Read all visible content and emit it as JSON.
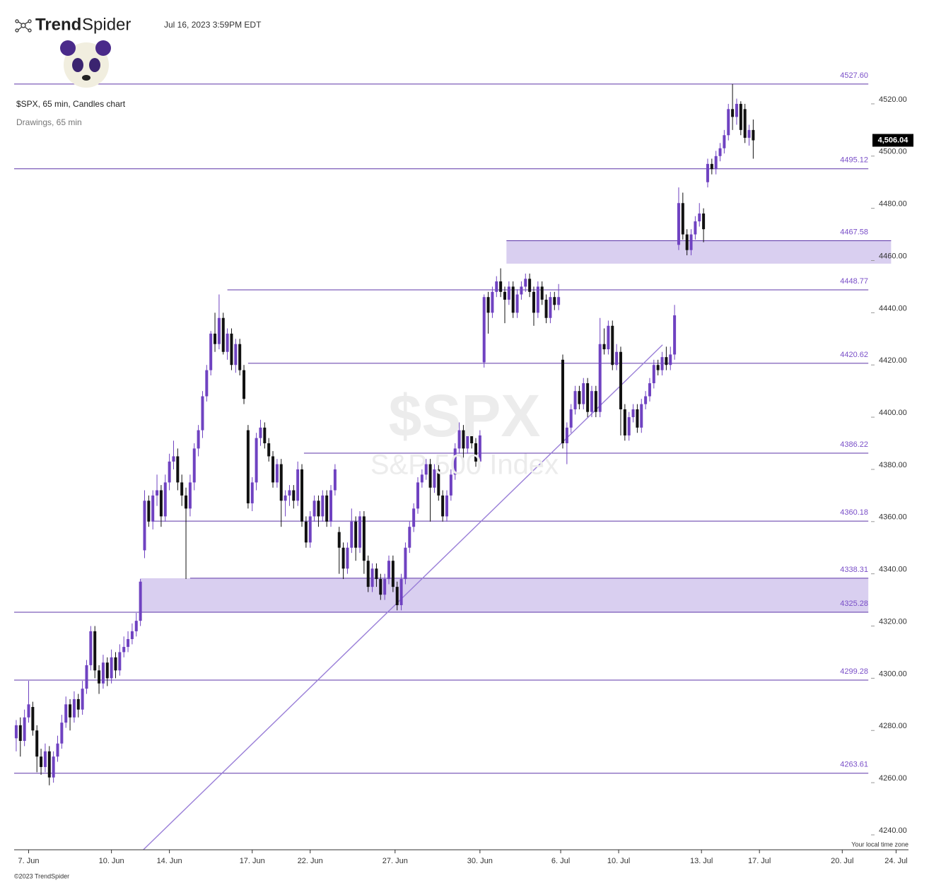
{
  "header": {
    "brand_bold": "Trend",
    "brand_light": "Spider",
    "timestamp": "Jul 16, 2023 3:59PM EDT",
    "symbol_line": "$SPX, 65 min, Candles chart",
    "drawings_line": "Drawings, 65 min",
    "timezone_note": "Your local time zone",
    "copyright": "©2023 TrendSpider"
  },
  "chart_data": {
    "type": "candlestick",
    "watermark": "$SPX",
    "watermark_subtitle": "S&P 500 Index",
    "up_color": "#6f42c1",
    "down_color": "#111111",
    "level_color": "#5d35a8",
    "zone_color": "#d9cff0",
    "xlim": [
      -0.5,
      215.5
    ],
    "ylim": [
      4234.3,
      4545
    ],
    "xticks": [
      {
        "value": 3,
        "label": "7. Jun"
      },
      {
        "value": 23,
        "label": "10. Jun"
      },
      {
        "value": 37,
        "label": "14. Jun"
      },
      {
        "value": 57,
        "label": "17. Jun"
      },
      {
        "value": 71,
        "label": "22. Jun"
      },
      {
        "value": 91.5,
        "label": "27. Jun"
      },
      {
        "value": 112,
        "label": "30. Jun"
      },
      {
        "value": 131.5,
        "label": "6. Jul"
      },
      {
        "value": 145.5,
        "label": "10. Jul"
      },
      {
        "value": 165.5,
        "label": "13. Jul"
      },
      {
        "value": 179.5,
        "label": "17. Jul"
      },
      {
        "value": 199.5,
        "label": "20. Jul"
      },
      {
        "value": 212.5,
        "label": "24. Jul"
      }
    ],
    "yticks": [
      {
        "value": 4240,
        "label": "4240.00"
      },
      {
        "value": 4260,
        "label": "4260.00"
      },
      {
        "value": 4280,
        "label": "4280.00"
      },
      {
        "value": 4300,
        "label": "4300.00"
      },
      {
        "value": 4320,
        "label": "4320.00"
      },
      {
        "value": 4340,
        "label": "4340.00"
      },
      {
        "value": 4360,
        "label": "4360.00"
      },
      {
        "value": 4380,
        "label": "4380.00"
      },
      {
        "value": 4400,
        "label": "4400.00"
      },
      {
        "value": 4420,
        "label": "4420.00"
      },
      {
        "value": 4440,
        "label": "4440.00"
      },
      {
        "value": 4460,
        "label": "4460.00"
      },
      {
        "value": 4480,
        "label": "4480.00"
      },
      {
        "value": 4500,
        "label": "4500.00"
      },
      {
        "value": 4520,
        "label": "4520.00"
      }
    ],
    "last_price": {
      "value": 4506.04,
      "label": "4,506.04"
    },
    "levels": [
      {
        "value": 4527.6,
        "label": "4527.60",
        "from": -0.5,
        "to": 205.8
      },
      {
        "value": 4495.12,
        "label": "4495.12",
        "from": -0.5,
        "to": 205.8
      },
      {
        "value": 4467.58,
        "label": "4467.58",
        "from": 118.4,
        "to": 211.3
      },
      {
        "value": 4448.77,
        "label": "4448.77",
        "from": 51,
        "to": 205.8
      },
      {
        "value": 4420.62,
        "label": "4420.62",
        "from": 56,
        "to": 205.8
      },
      {
        "value": 4386.22,
        "label": "4386.22",
        "from": 69.5,
        "to": 205.8
      },
      {
        "value": 4360.18,
        "label": "4360.18",
        "from": 33,
        "to": 205.8
      },
      {
        "value": 4338.31,
        "label": "4338.31",
        "from": 42,
        "to": 205.8
      },
      {
        "value": 4325.28,
        "label": "4325.28",
        "from": -0.5,
        "to": 205.8
      },
      {
        "value": 4299.28,
        "label": "4299.28",
        "from": -0.5,
        "to": 205.8
      },
      {
        "value": 4263.61,
        "label": "4263.61",
        "from": -0.5,
        "to": 205.8
      }
    ],
    "zones": [
      {
        "top": 4467.58,
        "bottom": 4458.8,
        "from": 118.4,
        "to": 211.3
      },
      {
        "top": 4338.31,
        "bottom": 4325.28,
        "from": 29.9,
        "to": 205.8
      }
    ],
    "trendline": {
      "x": [
        30.7,
        156.1
      ],
      "y": [
        4234.3,
        4427.7
      ]
    },
    "x": [
      0,
      1,
      2,
      3,
      4,
      5,
      6,
      7,
      8,
      9,
      10,
      11,
      12,
      13,
      14,
      15,
      16,
      17,
      18,
      19,
      20,
      21,
      22,
      23,
      24,
      25,
      26,
      27,
      28,
      29,
      30,
      31,
      32,
      33,
      34,
      35,
      36,
      37,
      38,
      39,
      40,
      41,
      42,
      43,
      44,
      45,
      46,
      47,
      48,
      49,
      50,
      51,
      52,
      53,
      54,
      55,
      56,
      57,
      58,
      59,
      60,
      61,
      62,
      63,
      64,
      65,
      66,
      67,
      68,
      69,
      70,
      71,
      72,
      73,
      74,
      75,
      76,
      77,
      78,
      79,
      80,
      81,
      82,
      83,
      84,
      85,
      86,
      87,
      88,
      89,
      90,
      91,
      92,
      93,
      94,
      95,
      96,
      97,
      98,
      99,
      100,
      101,
      102,
      103,
      104,
      105,
      106,
      107,
      108,
      109,
      110,
      111,
      112,
      113,
      114,
      115,
      116,
      117,
      118,
      119,
      120,
      121,
      122,
      123,
      124,
      125,
      126,
      127,
      128,
      129,
      130,
      131,
      132,
      133,
      134,
      135,
      136,
      137,
      138,
      139,
      140,
      141,
      142,
      143,
      144,
      145,
      146,
      147,
      148,
      149,
      150,
      151,
      152,
      153,
      154,
      155,
      156,
      157,
      158,
      159,
      160,
      161,
      162,
      163,
      164,
      165,
      166,
      167,
      168,
      169,
      170,
      171,
      172,
      173,
      174,
      175,
      176,
      177,
      178
    ],
    "candles": [
      [
        4277,
        4284,
        4272,
        4282
      ],
      [
        4282,
        4285,
        4270,
        4276
      ],
      [
        4276,
        4288,
        4274,
        4285
      ],
      [
        4285,
        4299,
        4283,
        4290
      ],
      [
        4289,
        4291,
        4278,
        4280
      ],
      [
        4280,
        4282,
        4264,
        4270
      ],
      [
        4270,
        4273,
        4263,
        4266
      ],
      [
        4266,
        4275,
        4264,
        4272
      ],
      [
        4272,
        4274,
        4259,
        4262
      ],
      [
        4262,
        4272,
        4260,
        4270
      ],
      [
        4270,
        4278,
        4268,
        4275
      ],
      [
        4275,
        4286,
        4273,
        4283
      ],
      [
        4283,
        4293,
        4281,
        4290
      ],
      [
        4290,
        4292,
        4280,
        4285
      ],
      [
        4285,
        4295,
        4283,
        4292
      ],
      [
        4292,
        4294,
        4285,
        4288
      ],
      [
        4288,
        4299,
        4286,
        4296
      ],
      [
        4296,
        4307,
        4294,
        4305
      ],
      [
        4305,
        4320,
        4303,
        4318
      ],
      [
        4318,
        4320,
        4300,
        4303
      ],
      [
        4303,
        4305,
        4294,
        4298
      ],
      [
        4298,
        4309,
        4296,
        4306
      ],
      [
        4306,
        4308,
        4297,
        4300
      ],
      [
        4300,
        4311,
        4298,
        4308
      ],
      [
        4308,
        4310,
        4300,
        4303
      ],
      [
        4303,
        4313,
        4301,
        4310
      ],
      [
        4310,
        4316,
        4308,
        4312
      ],
      [
        4312,
        4318,
        4310,
        4315
      ],
      [
        4315,
        4321,
        4313,
        4318
      ],
      [
        4318,
        4325,
        4316,
        4322
      ],
      [
        4322,
        4338,
        4320,
        4337
      ],
      [
        4349,
        4372,
        4346,
        4368
      ],
      [
        4368,
        4370,
        4358,
        4360
      ],
      [
        4360,
        4372,
        4357,
        4370
      ],
      [
        4370,
        4378,
        4366,
        4372
      ],
      [
        4372,
        4374,
        4358,
        4362
      ],
      [
        4362,
        4378,
        4360,
        4375
      ],
      [
        4375,
        4386,
        4372,
        4383
      ],
      [
        4383,
        4391,
        4380,
        4385
      ],
      [
        4385,
        4388,
        4372,
        4375
      ],
      [
        4375,
        4378,
        4366,
        4370
      ],
      [
        4370,
        4373,
        4338,
        4365
      ],
      [
        4365,
        4378,
        4362,
        4375
      ],
      [
        4375,
        4390,
        4372,
        4388
      ],
      [
        4388,
        4397,
        4385,
        4395
      ],
      [
        4395,
        4410,
        4392,
        4408
      ],
      [
        4408,
        4420,
        4406,
        4418
      ],
      [
        4418,
        4433,
        4416,
        4432
      ],
      [
        4432,
        4440,
        4425,
        4428
      ],
      [
        4428,
        4447,
        4426,
        4438
      ],
      [
        4438,
        4440,
        4424,
        4425
      ],
      [
        4425,
        4434,
        4422,
        4432
      ],
      [
        4432,
        4434,
        4418,
        4420
      ],
      [
        4420,
        4430,
        4417,
        4428
      ],
      [
        4428,
        4430,
        4416,
        4418
      ],
      [
        4418,
        4420,
        4405,
        4407
      ],
      [
        4395,
        4397,
        4365,
        4367
      ],
      [
        4367,
        4377,
        4364,
        4375
      ],
      [
        4375,
        4394,
        4372,
        4392
      ],
      [
        4392,
        4399,
        4389,
        4396
      ],
      [
        4396,
        4398,
        4388,
        4390
      ],
      [
        4390,
        4392,
        4383,
        4385
      ],
      [
        4385,
        4387,
        4373,
        4375
      ],
      [
        4375,
        4384,
        4373,
        4382
      ],
      [
        4382,
        4384,
        4358,
        4368
      ],
      [
        4368,
        4372,
        4362,
        4370
      ],
      [
        4370,
        4374,
        4366,
        4372
      ],
      [
        4372,
        4374,
        4365,
        4368
      ],
      [
        4368,
        4383,
        4366,
        4380
      ],
      [
        4380,
        4382,
        4358,
        4360
      ],
      [
        4360,
        4362,
        4350,
        4352
      ],
      [
        4352,
        4364,
        4350,
        4362
      ],
      [
        4362,
        4370,
        4360,
        4368
      ],
      [
        4368,
        4370,
        4358,
        4362
      ],
      [
        4362,
        4372,
        4360,
        4370
      ],
      [
        4370,
        4372,
        4358,
        4360
      ],
      [
        4360,
        4374,
        4358,
        4372
      ],
      [
        4372,
        4382,
        4370,
        4380
      ],
      [
        4356,
        4358,
        4340,
        4350
      ],
      [
        4350,
        4352,
        4338,
        4342
      ],
      [
        4342,
        4352,
        4340,
        4350
      ],
      [
        4350,
        4365,
        4348,
        4360
      ],
      [
        4360,
        4362,
        4345,
        4350
      ],
      [
        4350,
        4364,
        4348,
        4362
      ],
      [
        4362,
        4364,
        4340,
        4345
      ],
      [
        4345,
        4347,
        4333,
        4335
      ],
      [
        4335,
        4344,
        4333,
        4342
      ],
      [
        4342,
        4344,
        4335,
        4338
      ],
      [
        4338,
        4340,
        4330,
        4332
      ],
      [
        4332,
        4340,
        4330,
        4338
      ],
      [
        4338,
        4347,
        4336,
        4345
      ],
      [
        4345,
        4347,
        4333,
        4335
      ],
      [
        4335,
        4337,
        4326,
        4328
      ],
      [
        4328,
        4340,
        4326,
        4338
      ],
      [
        4338,
        4352,
        4336,
        4350
      ],
      [
        4350,
        4360,
        4348,
        4358
      ],
      [
        4358,
        4367,
        4356,
        4365
      ],
      [
        4365,
        4377,
        4363,
        4375
      ],
      [
        4375,
        4380,
        4373,
        4378
      ],
      [
        4378,
        4384,
        4376,
        4382
      ],
      [
        4382,
        4384,
        4360,
        4373
      ],
      [
        4373,
        4382,
        4371,
        4380
      ],
      [
        4380,
        4382,
        4368,
        4370
      ],
      [
        4370,
        4372,
        4360,
        4362
      ],
      [
        4362,
        4372,
        4360,
        4370
      ],
      [
        4370,
        4380,
        4368,
        4378
      ],
      [
        4378,
        4390,
        4376,
        4388
      ],
      [
        4388,
        4398,
        4386,
        4395
      ],
      [
        4395,
        4397,
        4380,
        4388
      ],
      [
        4388,
        4400,
        4386,
        4398
      ],
      [
        4398,
        4400,
        4388,
        4390
      ],
      [
        4390,
        4392,
        4381,
        4383
      ],
      [
        4383,
        4395,
        4381,
        4393
      ],
      [
        4421,
        4447,
        4419,
        4446
      ],
      [
        4446,
        4448,
        4432,
        4440
      ],
      [
        4440,
        4450,
        4438,
        4448
      ],
      [
        4448,
        4454,
        4446,
        4452
      ],
      [
        4452,
        4457,
        4446,
        4448
      ],
      [
        4448,
        4450,
        4436,
        4445
      ],
      [
        4445,
        4452,
        4443,
        4450
      ],
      [
        4450,
        4452,
        4438,
        4440
      ],
      [
        4440,
        4449,
        4438,
        4447
      ],
      [
        4447,
        4452,
        4445,
        4450
      ],
      [
        4450,
        4455,
        4448,
        4453
      ],
      [
        4453,
        4455,
        4446,
        4448
      ],
      [
        4448,
        4450,
        4435,
        4440
      ],
      [
        4440,
        4452,
        4438,
        4450
      ],
      [
        4450,
        4452,
        4443,
        4445
      ],
      [
        4445,
        4447,
        4436,
        4438
      ],
      [
        4438,
        4448,
        4436,
        4446
      ],
      [
        4446,
        4448,
        4441,
        4443
      ],
      [
        4443,
        4451,
        4441,
        4446
      ],
      [
        4422,
        4424,
        4388,
        4390
      ],
      [
        4390,
        4398,
        4382,
        4396
      ],
      [
        4396,
        4405,
        4394,
        4403
      ],
      [
        4403,
        4412,
        4401,
        4410
      ],
      [
        4410,
        4412,
        4403,
        4405
      ],
      [
        4405,
        4415,
        4403,
        4413
      ],
      [
        4413,
        4415,
        4400,
        4402
      ],
      [
        4402,
        4412,
        4400,
        4410
      ],
      [
        4410,
        4412,
        4400,
        4402
      ],
      [
        4402,
        4438,
        4400,
        4428
      ],
      [
        4428,
        4434,
        4424,
        4426
      ],
      [
        4426,
        4437,
        4424,
        4435
      ],
      [
        4435,
        4437,
        4418,
        4420
      ],
      [
        4420,
        4428,
        4418,
        4425
      ],
      [
        4425,
        4427,
        4393,
        4403
      ],
      [
        4403,
        4405,
        4391,
        4393
      ],
      [
        4393,
        4402,
        4391,
        4400
      ],
      [
        4400,
        4405,
        4398,
        4403
      ],
      [
        4403,
        4405,
        4394,
        4396
      ],
      [
        4396,
        4407,
        4394,
        4405
      ],
      [
        4405,
        4410,
        4403,
        4408
      ],
      [
        4408,
        4415,
        4406,
        4413
      ],
      [
        4413,
        4422,
        4411,
        4420
      ],
      [
        4420,
        4422,
        4416,
        4418
      ],
      [
        4418,
        4425,
        4416,
        4423
      ],
      [
        4423,
        4427,
        4418,
        4420
      ],
      [
        4420,
        4427,
        4418,
        4424
      ],
      [
        4424,
        4443,
        4422,
        4439
      ],
      [
        4466,
        4488,
        4464,
        4482
      ],
      [
        4482,
        4486,
        4468,
        4470
      ],
      [
        4470,
        4472,
        4462,
        4464
      ],
      [
        4464,
        4472,
        4462,
        4470
      ],
      [
        4470,
        4477,
        4468,
        4475
      ],
      [
        4475,
        4482,
        4473,
        4478
      ],
      [
        4478,
        4480,
        4467,
        4472
      ],
      [
        4490,
        4499,
        4488,
        4497
      ],
      [
        4497,
        4499,
        4493,
        4495
      ],
      [
        4495,
        4502,
        4493,
        4500
      ],
      [
        4500,
        4505,
        4498,
        4503
      ],
      [
        4503,
        4510,
        4501,
        4508
      ],
      [
        4508,
        4520,
        4506,
        4518
      ],
      [
        4518,
        4527.6,
        4510,
        4515
      ],
      [
        4515,
        4522,
        4512,
        4520
      ],
      [
        4520,
        4521,
        4508,
        4510
      ],
      [
        4518,
        4520,
        4505,
        4507
      ],
      [
        4507,
        4512,
        4504,
        4510
      ],
      [
        4510,
        4514,
        4499,
        4506.04
      ]
    ]
  }
}
